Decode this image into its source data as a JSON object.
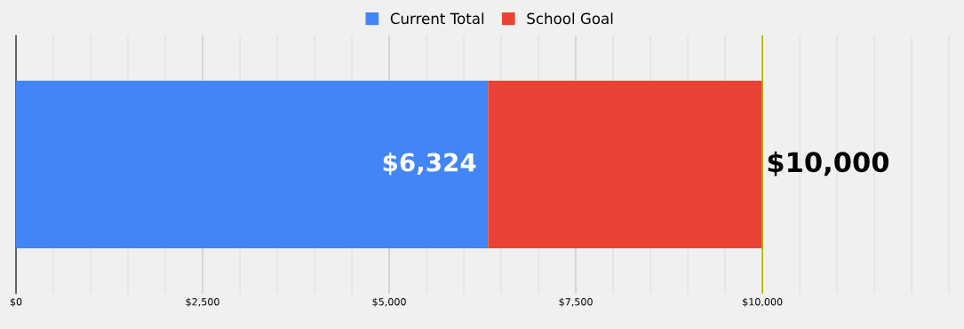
{
  "chart_data": {
    "type": "bar",
    "orientation": "horizontal",
    "stacked": true,
    "categories": [
      null
    ],
    "series": [
      {
        "name": "Current Total",
        "color": "#4285f4",
        "values": [
          6324
        ],
        "value_labels": [
          "$6,324"
        ]
      },
      {
        "name": "School Goal",
        "color": "#ea4335",
        "values": [
          3676
        ]
      }
    ],
    "totals": [
      "$10,000"
    ],
    "xlim": [
      0,
      12700
    ],
    "xticks": [
      {
        "value": 0,
        "label": "$0"
      },
      {
        "value": 500,
        "label": null
      },
      {
        "value": 1000,
        "label": null
      },
      {
        "value": 1500,
        "label": null
      },
      {
        "value": 2000,
        "label": null
      },
      {
        "value": 2500,
        "label": "$2,500"
      },
      {
        "value": 3000,
        "label": null
      },
      {
        "value": 3500,
        "label": null
      },
      {
        "value": 4000,
        "label": null
      },
      {
        "value": 4500,
        "label": null
      },
      {
        "value": 5000,
        "label": "$5,000"
      },
      {
        "value": 5500,
        "label": null
      },
      {
        "value": 6000,
        "label": null
      },
      {
        "value": 6500,
        "label": null
      },
      {
        "value": 7000,
        "label": null
      },
      {
        "value": 7500,
        "label": "$7,500"
      },
      {
        "value": 8000,
        "label": null
      },
      {
        "value": 8500,
        "label": null
      },
      {
        "value": 9000,
        "label": null
      },
      {
        "value": 9500,
        "label": null
      },
      {
        "value": 10000,
        "label": "$10,000"
      },
      {
        "value": 10500,
        "label": null
      },
      {
        "value": 11000,
        "label": null
      },
      {
        "value": 11500,
        "label": null
      },
      {
        "value": 12000,
        "label": null
      },
      {
        "value": 12500,
        "label": null
      }
    ],
    "ref_lines": [
      {
        "axis": "x",
        "value": 10000,
        "color": "#b5b500"
      }
    ],
    "grid": "x",
    "legend": "top",
    "tick_labels": "x"
  }
}
